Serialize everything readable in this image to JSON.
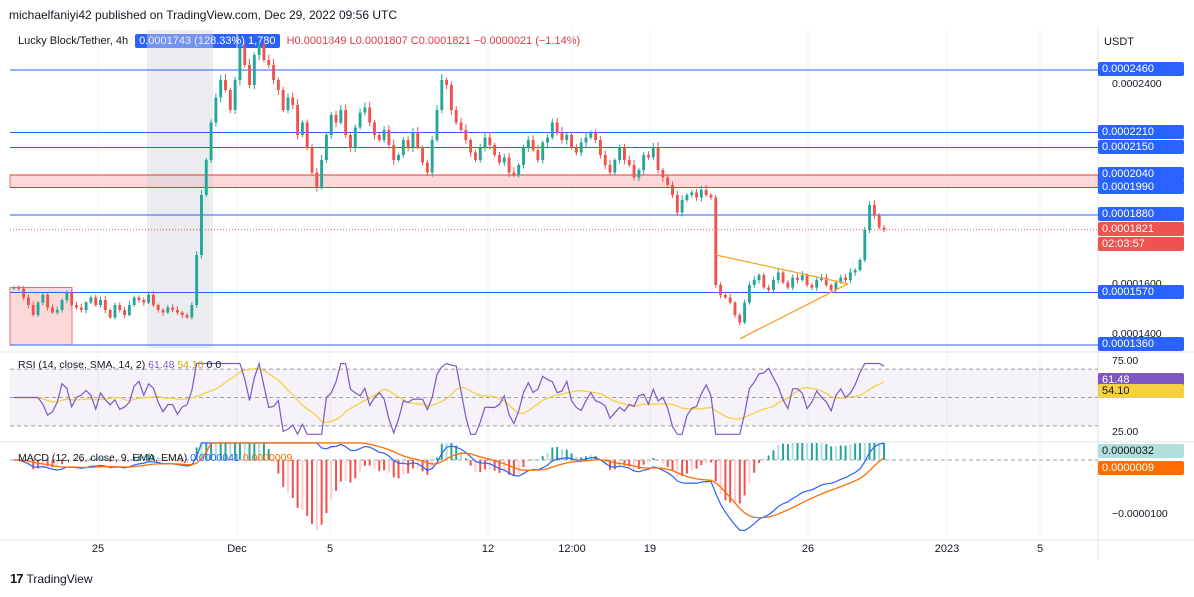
{
  "header": {
    "published": "michaelfaniyi42 published on TradingView.com, Dec 29, 2022 09:56 UTC"
  },
  "legend": {
    "symbol": "Lucky Block/Tether, 4h",
    "overlay_badge": "0.0001743 (128.33%) 1,780",
    "ohlc": "H0.0001849 L0.0001807 C0.0001821 −0.0000021 (−1.14%)"
  },
  "axis_currency": "USDT",
  "footer": {
    "brand": "TradingView",
    "mark": "17"
  },
  "colors": {
    "up": "#26a69a",
    "down": "#ef5350",
    "level": "#2962ff",
    "zone": "#f9c9c9",
    "rsi_line": "#7e57c2",
    "rsi_sma": "#f5d142",
    "triangle": "#f5a623",
    "macd": "#2962ff",
    "signal": "#ff6d00"
  },
  "chart_data": [
    {
      "type": "candlestick",
      "ylim": [
        0.000134,
        0.000262
      ],
      "x_ticks": [
        "25",
        "Dec",
        "5",
        "12",
        "12:00",
        "19",
        "26",
        "2023",
        "5"
      ],
      "price_labels": [
        "0.0002400",
        "0.0001600",
        "0.0001400"
      ],
      "levels": [
        0.000246,
        0.000221,
        0.000215,
        0.000204,
        0.000199,
        0.000188,
        0.0001821,
        0.000157,
        0.000136
      ],
      "level_tags": [
        "0.0002460",
        "0.0002210",
        "0.0002150",
        "0.0002040",
        "0.0001990",
        "0.0001880",
        "0.0001821",
        "0.0001570",
        "0.0001360"
      ],
      "countdown": "02:03:57",
      "resistance_zone": [
        0.000199,
        0.000204
      ],
      "close_series": [
        0.000159,
        0.0001585,
        0.000155,
        0.000152,
        0.000148,
        0.000153,
        0.000156,
        0.000151,
        0.000149,
        0.00015,
        0.000154,
        0.000157,
        0.000152,
        0.000151,
        0.00015,
        0.000153,
        0.000155,
        0.000152,
        0.000154,
        0.00015,
        0.000147,
        0.000152,
        0.00015,
        0.000148,
        0.000152,
        0.000155,
        0.000154,
        0.000153,
        0.000156,
        0.000152,
        0.00015,
        0.000149,
        0.000151,
        0.00015,
        0.000149,
        0.000148,
        0.000147,
        0.000152,
        0.000172,
        0.000196,
        0.00021,
        0.000225,
        0.000235,
        0.000242,
        0.000238,
        0.00023,
        0.000242,
        0.000255,
        0.000248,
        0.00024,
        0.000252,
        0.000256,
        0.00025,
        0.000248,
        0.000242,
        0.000238,
        0.00023,
        0.000235,
        0.000232,
        0.00022,
        0.000225,
        0.000215,
        0.000205,
        0.000199,
        0.00021,
        0.00022,
        0.000228,
        0.000225,
        0.00023,
        0.00022,
        0.000215,
        0.000223,
        0.000229,
        0.000231,
        0.000225,
        0.00022,
        0.000218,
        0.000222,
        0.000216,
        0.00021,
        0.000212,
        0.000218,
        0.000215,
        0.000221,
        0.000215,
        0.000209,
        0.000205,
        0.000218,
        0.00023,
        0.000242,
        0.00024,
        0.00023,
        0.000225,
        0.000222,
        0.000218,
        0.000213,
        0.00021,
        0.000215,
        0.000219,
        0.000216,
        0.000212,
        0.000209,
        0.000211,
        0.000205,
        0.000204,
        0.000208,
        0.000215,
        0.000218,
        0.000214,
        0.00021,
        0.000217,
        0.000219,
        0.000225,
        0.000221,
        0.000218,
        0.00022,
        0.000215,
        0.000213,
        0.000217,
        0.000219,
        0.000221,
        0.000218,
        0.000212,
        0.000208,
        0.000205,
        0.00021,
        0.000215,
        0.00021,
        0.000208,
        0.000203,
        0.000206,
        0.000212,
        0.000211,
        0.000215,
        0.000206,
        0.000203,
        0.0002,
        0.000196,
        0.000189,
        0.000194,
        0.000196,
        0.000197,
        0.000195,
        0.000198,
        0.000196,
        0.000195,
        0.00016,
        0.000156,
        0.000155,
        0.000153,
        0.000148,
        0.000145,
        0.000153,
        0.00016,
        0.000162,
        0.000164,
        0.000159,
        0.000158,
        0.000162,
        0.000165,
        0.000161,
        0.000159,
        0.000163,
        0.000162,
        0.000164,
        0.00016,
        0.000159,
        0.000162,
        0.000163,
        0.00016,
        0.000158,
        0.000161,
        0.000163,
        0.000162,
        0.000165,
        0.000166,
        0.00017,
        0.000182,
        0.000192,
        0.000188,
        0.000183,
        0.0001821
      ]
    },
    {
      "type": "line",
      "name": "RSI (14, close, SMA, 14, 2)",
      "label_values": [
        "61.48",
        "54.10",
        "0",
        "0"
      ],
      "ylim": [
        20,
        80
      ],
      "y_ticks": [
        "75.00",
        "25.00"
      ],
      "bands": [
        70,
        50,
        30
      ]
    },
    {
      "type": "bar",
      "name": "MACD (12, 26, close, 9, EMA, EMA)",
      "label_values": [
        "0.0000041",
        "0.0000009"
      ],
      "tags": [
        "0.0000032",
        "0.0000009"
      ],
      "y_ticks": [
        "−0.0000100"
      ]
    }
  ]
}
